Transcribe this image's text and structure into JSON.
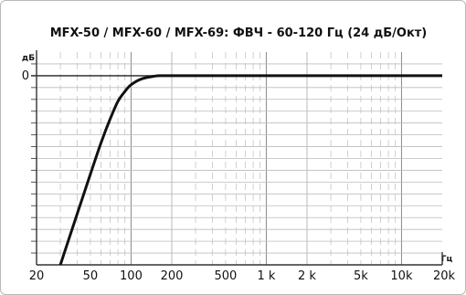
{
  "chart_data": {
    "type": "line",
    "title": "MFX-50 / MFX-60 / MFX-69: ФВЧ - 60-120 Гц (24 дБ/Окт)",
    "xlabel": "Гц",
    "ylabel": "дБ",
    "x_scale": "log",
    "xlim": [
      20,
      20000
    ],
    "ylim": [
      -48,
      6
    ],
    "x_ticks": [
      {
        "value": 20,
        "label": "20"
      },
      {
        "value": 50,
        "label": "50"
      },
      {
        "value": 100,
        "label": "100"
      },
      {
        "value": 200,
        "label": "200"
      },
      {
        "value": 500,
        "label": "500"
      },
      {
        "value": 1000,
        "label": "1 k"
      },
      {
        "value": 2000,
        "label": "2 k"
      },
      {
        "value": 5000,
        "label": "5k"
      },
      {
        "value": 10000,
        "label": "10k"
      },
      {
        "value": 20000,
        "label": "20k"
      }
    ],
    "y_ticks": [
      {
        "value": 0,
        "label": "0"
      }
    ],
    "grid": true,
    "series": [
      {
        "x": [
          30,
          40,
          50,
          60,
          70,
          80,
          90,
          100,
          120,
          150,
          170,
          200,
          500,
          1000,
          2000,
          5000,
          10000,
          20000
        ],
        "y": [
          -48,
          -35,
          -25,
          -17,
          -11,
          -6.5,
          -4,
          -2.3,
          -0.8,
          -0.1,
          0,
          0,
          0,
          0,
          0,
          0,
          0,
          0
        ]
      }
    ],
    "colors": {
      "line": "#111111",
      "grid": "#999999",
      "frame": "#b8b8b8"
    }
  }
}
